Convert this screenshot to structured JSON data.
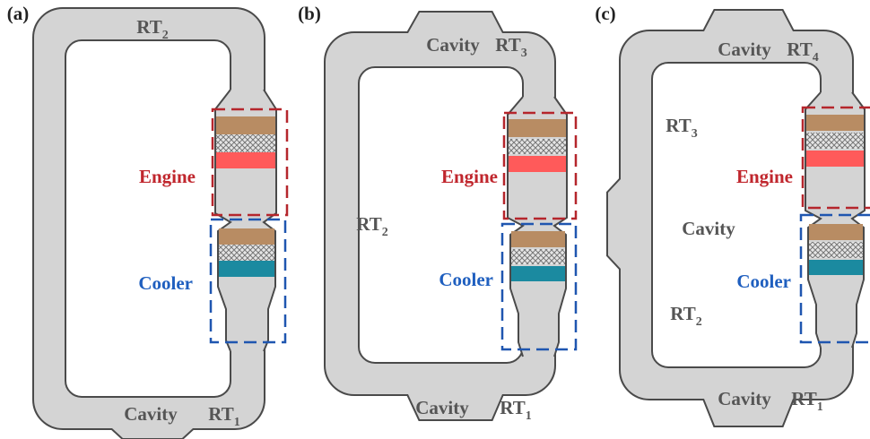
{
  "panels": [
    {
      "label": "(a)",
      "engine": "Engine",
      "cooler": "Cooler",
      "texts": [
        {
          "main": "RT",
          "sub": "2"
        },
        {
          "main": "Cavity"
        },
        {
          "main": "RT",
          "sub": "1"
        }
      ]
    },
    {
      "label": "(b)",
      "engine": "Engine",
      "cooler": "Cooler",
      "texts": [
        {
          "main": "Cavity"
        },
        {
          "main": "RT",
          "sub": "3"
        },
        {
          "main": "RT",
          "sub": "2"
        },
        {
          "main": "Cavity"
        },
        {
          "main": "RT",
          "sub": "1"
        }
      ]
    },
    {
      "label": "(c)",
      "engine": "Engine",
      "cooler": "Cooler",
      "texts": [
        {
          "main": "Cavity"
        },
        {
          "main": "RT",
          "sub": "4"
        },
        {
          "main": "RT",
          "sub": "3"
        },
        {
          "main": "Cavity"
        },
        {
          "main": "RT",
          "sub": "2"
        },
        {
          "main": "Cavity"
        },
        {
          "main": "RT",
          "sub": "1"
        }
      ]
    }
  ]
}
